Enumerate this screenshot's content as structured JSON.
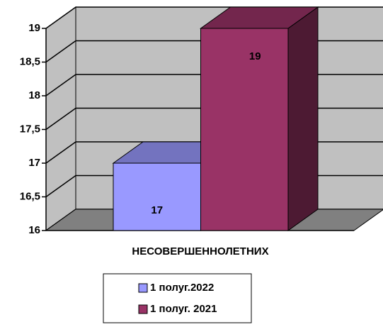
{
  "chart_data": {
    "type": "bar3d",
    "categories": [
      "НЕСОВЕРШЕННОЛЕТНИХ"
    ],
    "series": [
      {
        "name": "1 полуг.2022",
        "color": "#9999ff",
        "values": [
          17
        ]
      },
      {
        "name": "1 полуг. 2021",
        "color": "#993366",
        "values": [
          19
        ]
      }
    ],
    "ylim": [
      16,
      19
    ],
    "yticks": [
      16,
      {
        "value": 16.5,
        "label": "16,5"
      },
      17,
      {
        "value": 17.5,
        "label": "17,5"
      },
      18,
      {
        "value": 18.5,
        "label": "18,5"
      },
      19
    ],
    "grid": true,
    "legend": "bottom"
  }
}
